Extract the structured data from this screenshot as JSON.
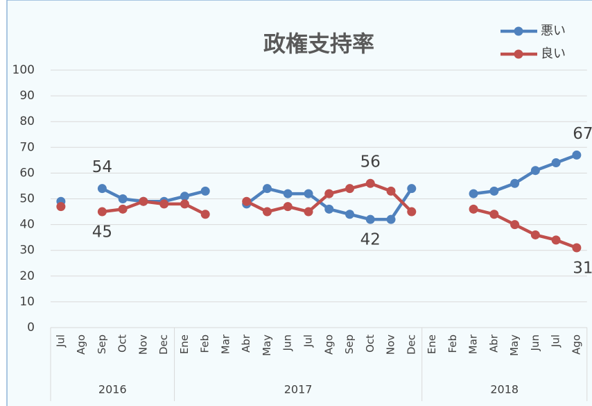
{
  "chart_data": {
    "type": "line",
    "title": "政権支持率",
    "categories": [
      "Jul",
      "Ago",
      "Sep",
      "Oct",
      "Nov",
      "Dec",
      "Ene",
      "Feb",
      "Mar",
      "Abr",
      "May",
      "Jun",
      "Jul",
      "Ago",
      "Sep",
      "Oct",
      "Nov",
      "Dec",
      "Ene",
      "Feb",
      "Mar",
      "Abr",
      "May",
      "Jun",
      "Jul",
      "Ago"
    ],
    "groups": [
      {
        "name": "2016",
        "count": 6
      },
      {
        "name": "2017",
        "count": 12
      },
      {
        "name": "2018",
        "count": 8
      }
    ],
    "series": [
      {
        "name": "悪い",
        "color": "#4f81bd",
        "values": [
          49,
          null,
          54,
          50,
          49,
          49,
          51,
          53,
          null,
          48,
          54,
          52,
          52,
          46,
          44,
          42,
          42,
          54,
          null,
          null,
          52,
          53,
          56,
          61,
          64,
          67
        ],
        "value_labels": [
          null,
          null,
          "54",
          null,
          null,
          null,
          null,
          null,
          null,
          null,
          null,
          null,
          null,
          null,
          null,
          "42",
          null,
          null,
          null,
          null,
          null,
          null,
          null,
          null,
          null,
          "67"
        ]
      },
      {
        "name": "良い",
        "color": "#c0504d",
        "values": [
          47,
          null,
          45,
          46,
          49,
          48,
          48,
          44,
          null,
          49,
          45,
          47,
          45,
          52,
          54,
          56,
          53,
          45,
          null,
          null,
          46,
          44,
          40,
          36,
          34,
          31
        ],
        "value_labels": [
          null,
          null,
          "45",
          null,
          null,
          null,
          null,
          null,
          null,
          null,
          null,
          null,
          null,
          null,
          null,
          "56",
          null,
          null,
          null,
          null,
          null,
          null,
          null,
          null,
          null,
          "31"
        ]
      }
    ],
    "ylim": [
      0,
      100
    ],
    "yticks": [
      0,
      10,
      20,
      30,
      40,
      50,
      60,
      70,
      80,
      90,
      100
    ],
    "grid": true,
    "legend": "top-right"
  }
}
